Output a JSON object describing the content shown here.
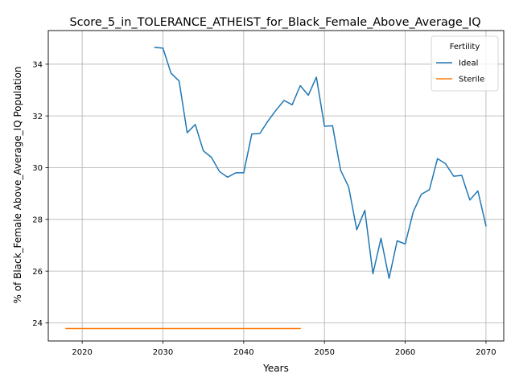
{
  "chart_data": {
    "type": "line",
    "title": "Score_5_in_TOLERANCE_ATHEIST_for_Black_Female_Above_Average_IQ",
    "xlabel": "Years",
    "ylabel": "% of Black_Female Above_Average_IQ Population",
    "xlim": [
      2015.8,
      2072.2
    ],
    "ylim": [
      23.3,
      35.3
    ],
    "x_ticks": [
      2020,
      2030,
      2040,
      2050,
      2060,
      2070
    ],
    "y_ticks": [
      24,
      26,
      28,
      30,
      32,
      34
    ],
    "grid": true,
    "legend": {
      "title": "Fertility",
      "position": "top-right"
    },
    "series": [
      {
        "name": "Ideal",
        "color": "#1f77b4",
        "x": [
          2029,
          2030,
          2031,
          2032,
          2033,
          2034,
          2035,
          2036,
          2037,
          2038,
          2039,
          2040,
          2041,
          2042,
          2043,
          2044,
          2045,
          2046,
          2047,
          2048,
          2049,
          2050,
          2051,
          2052,
          2053,
          2054,
          2055,
          2056,
          2057,
          2058,
          2059,
          2060,
          2061,
          2062,
          2063,
          2064,
          2065,
          2066,
          2067,
          2068,
          2069,
          2070
        ],
        "y": [
          34.65,
          34.62,
          33.65,
          33.35,
          31.35,
          31.67,
          30.65,
          30.4,
          29.85,
          29.63,
          29.8,
          29.8,
          31.3,
          31.32,
          31.8,
          32.22,
          32.6,
          32.43,
          33.17,
          32.8,
          33.5,
          31.6,
          31.62,
          29.9,
          29.25,
          27.6,
          28.35,
          25.9,
          27.27,
          25.72,
          27.17,
          27.05,
          28.3,
          28.97,
          29.15,
          30.35,
          30.15,
          29.67,
          29.7,
          28.75,
          29.1,
          27.75
        ]
      },
      {
        "name": "Sterile",
        "color": "#ff7f0e",
        "x": [
          2018,
          2019,
          2020,
          2021,
          2022,
          2023,
          2024,
          2025,
          2026,
          2027,
          2028,
          2029,
          2030,
          2031,
          2032,
          2033,
          2034,
          2035,
          2036,
          2037,
          2038,
          2039,
          2040,
          2041,
          2042,
          2043,
          2044,
          2045,
          2046,
          2047
        ],
        "y": [
          23.78,
          23.78,
          23.78,
          23.78,
          23.78,
          23.78,
          23.78,
          23.78,
          23.78,
          23.78,
          23.78,
          23.78,
          23.78,
          23.78,
          23.78,
          23.78,
          23.78,
          23.78,
          23.78,
          23.78,
          23.78,
          23.78,
          23.78,
          23.78,
          23.78,
          23.78,
          23.78,
          23.78,
          23.78,
          23.78
        ]
      }
    ]
  }
}
